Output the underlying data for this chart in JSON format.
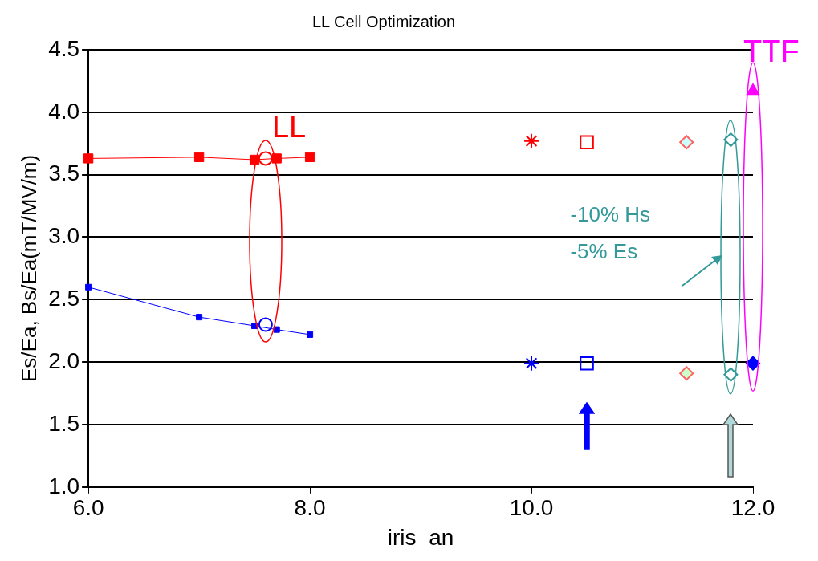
{
  "chart_data": {
    "type": "scatter",
    "title": "LL Cell Optimization",
    "xlabel": "iris  an",
    "ylabel": "Es/Ea, Bs/Ea(mT/MV/m)",
    "xlim": [
      6,
      12
    ],
    "xticks": [
      {
        "value": 6,
        "label": "6.0"
      },
      {
        "value": 8,
        "label": "8.0"
      },
      {
        "value": 10,
        "label": "10.0"
      },
      {
        "value": 12,
        "label": "12.0"
      }
    ],
    "ylim": [
      1,
      4.5
    ],
    "yticks": [
      {
        "value": 1,
        "label": "1.0"
      },
      {
        "value": 1.5,
        "label": "1.5"
      },
      {
        "value": 2,
        "label": "2.0"
      },
      {
        "value": 2.5,
        "label": "2.5"
      },
      {
        "value": 3,
        "label": "3.0"
      },
      {
        "value": 3.5,
        "label": "3.5"
      },
      {
        "value": 4,
        "label": "4.0"
      },
      {
        "value": 4.5,
        "label": "4.5"
      }
    ],
    "grid": "y",
    "legend": false,
    "annotations": [
      {
        "text": "LL",
        "x": 7.6,
        "y": 3.63
      },
      {
        "text": "TTF",
        "x": 12,
        "y": 4.17
      },
      "-10% Hs",
      "-5% Es"
    ],
    "series": [
      {
        "type": "line",
        "marker": "square",
        "color": "#ff0000",
        "x": [
          6,
          7,
          7.5,
          7.7,
          8
        ],
        "values": [
          3.63,
          3.64,
          3.62,
          3.63,
          3.64
        ]
      },
      {
        "type": "line",
        "marker": "square",
        "color": "#0000ff",
        "x": [
          6,
          7,
          7.5,
          7.7,
          8
        ],
        "values": [
          2.6,
          2.36,
          2.29,
          2.26,
          2.22
        ]
      },
      {
        "marker": "circle",
        "color": "#ff0000",
        "x": [
          7.6
        ],
        "values": [
          3.63
        ]
      },
      {
        "marker": "circle",
        "color": "#0000ff",
        "x": [
          7.6
        ],
        "values": [
          2.3
        ]
      },
      {
        "marker": "cross",
        "color": "#ff0000",
        "x": [
          10
        ],
        "values": [
          3.77
        ]
      },
      {
        "marker": "cross",
        "color": "#0000ff",
        "x": [
          10
        ],
        "values": [
          1.99
        ]
      },
      {
        "marker": "square",
        "color": "#ff0000",
        "x": [
          10.5
        ],
        "values": [
          3.76
        ]
      },
      {
        "marker": "square",
        "color": "#0000ff",
        "x": [
          10.5
        ],
        "values": [
          1.99
        ]
      },
      {
        "marker": "diamond",
        "color": "#ff6060",
        "colors": [
          "#ccffff"
        ],
        "x": [
          11.4
        ],
        "values": [
          3.76
        ]
      },
      {
        "marker": "diamond",
        "color": "#ff6060",
        "colors": [
          "#ccffcc"
        ],
        "x": [
          11.4
        ],
        "values": [
          1.91
        ]
      },
      {
        "marker": "diamond",
        "color": "#339999",
        "x": [
          11.8,
          11.8
        ],
        "values": [
          3.78,
          1.9
        ]
      },
      {
        "marker": "triangle",
        "color": "#ff00ff",
        "colors": [
          "#ff00ff"
        ],
        "x": [
          12
        ],
        "values": [
          4.17
        ]
      },
      {
        "marker": "diamond",
        "color": "#0000ff",
        "colors": [
          "#0000ff"
        ],
        "x": [
          12
        ],
        "values": [
          1.99
        ]
      }
    ]
  }
}
